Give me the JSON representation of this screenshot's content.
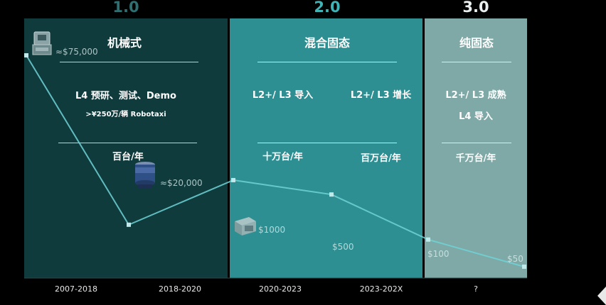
{
  "generations": [
    {
      "label": "1.0",
      "title": "机械式",
      "lines": [
        "L4 预研、测试、Demo",
        ">¥250万/辆 Robotaxi"
      ],
      "volume": "百台/年"
    },
    {
      "label": "2.0",
      "title": "混合固态",
      "lines": [
        "L2+/ L3 导入",
        "L2+/ L3 增长"
      ],
      "volume": [
        "十万台/年",
        "百万台/年"
      ]
    },
    {
      "label": "3.0",
      "title": "纯固态",
      "lines": [
        "L2+/ L3 成熟",
        "L4 导入"
      ],
      "volume": "千万台/年"
    }
  ],
  "icons": [
    "lidar-mechanical-icon",
    "lidar-cylinder-icon",
    "lidar-box-icon"
  ],
  "colors": {
    "gen1": "#103b3d",
    "gen2": "#2e8f93",
    "gen3": "#7fa9a6",
    "line": "#6fd3d6"
  },
  "chart_data": {
    "type": "line",
    "categories": [
      "2007-2018",
      "2018-2020",
      "2020-2023",
      "2023-202X",
      "?"
    ],
    "series": [
      {
        "points": [
          {
            "x": "2007",
            "y": 75000,
            "label": "≈$75,000"
          },
          {
            "x": "2018",
            "y": 20000,
            "label": "≈$20,000"
          },
          {
            "x": "2020",
            "y": 1000,
            "label": "$1000"
          },
          {
            "x": "2023",
            "y": 500,
            "label": "$500"
          },
          {
            "x": "202X",
            "y": 100,
            "label": "$100"
          },
          {
            "x": "?",
            "y": 50,
            "label": "$50"
          }
        ]
      }
    ],
    "xlabel": "",
    "ylabel": "",
    "grid": false,
    "legend": "none"
  }
}
